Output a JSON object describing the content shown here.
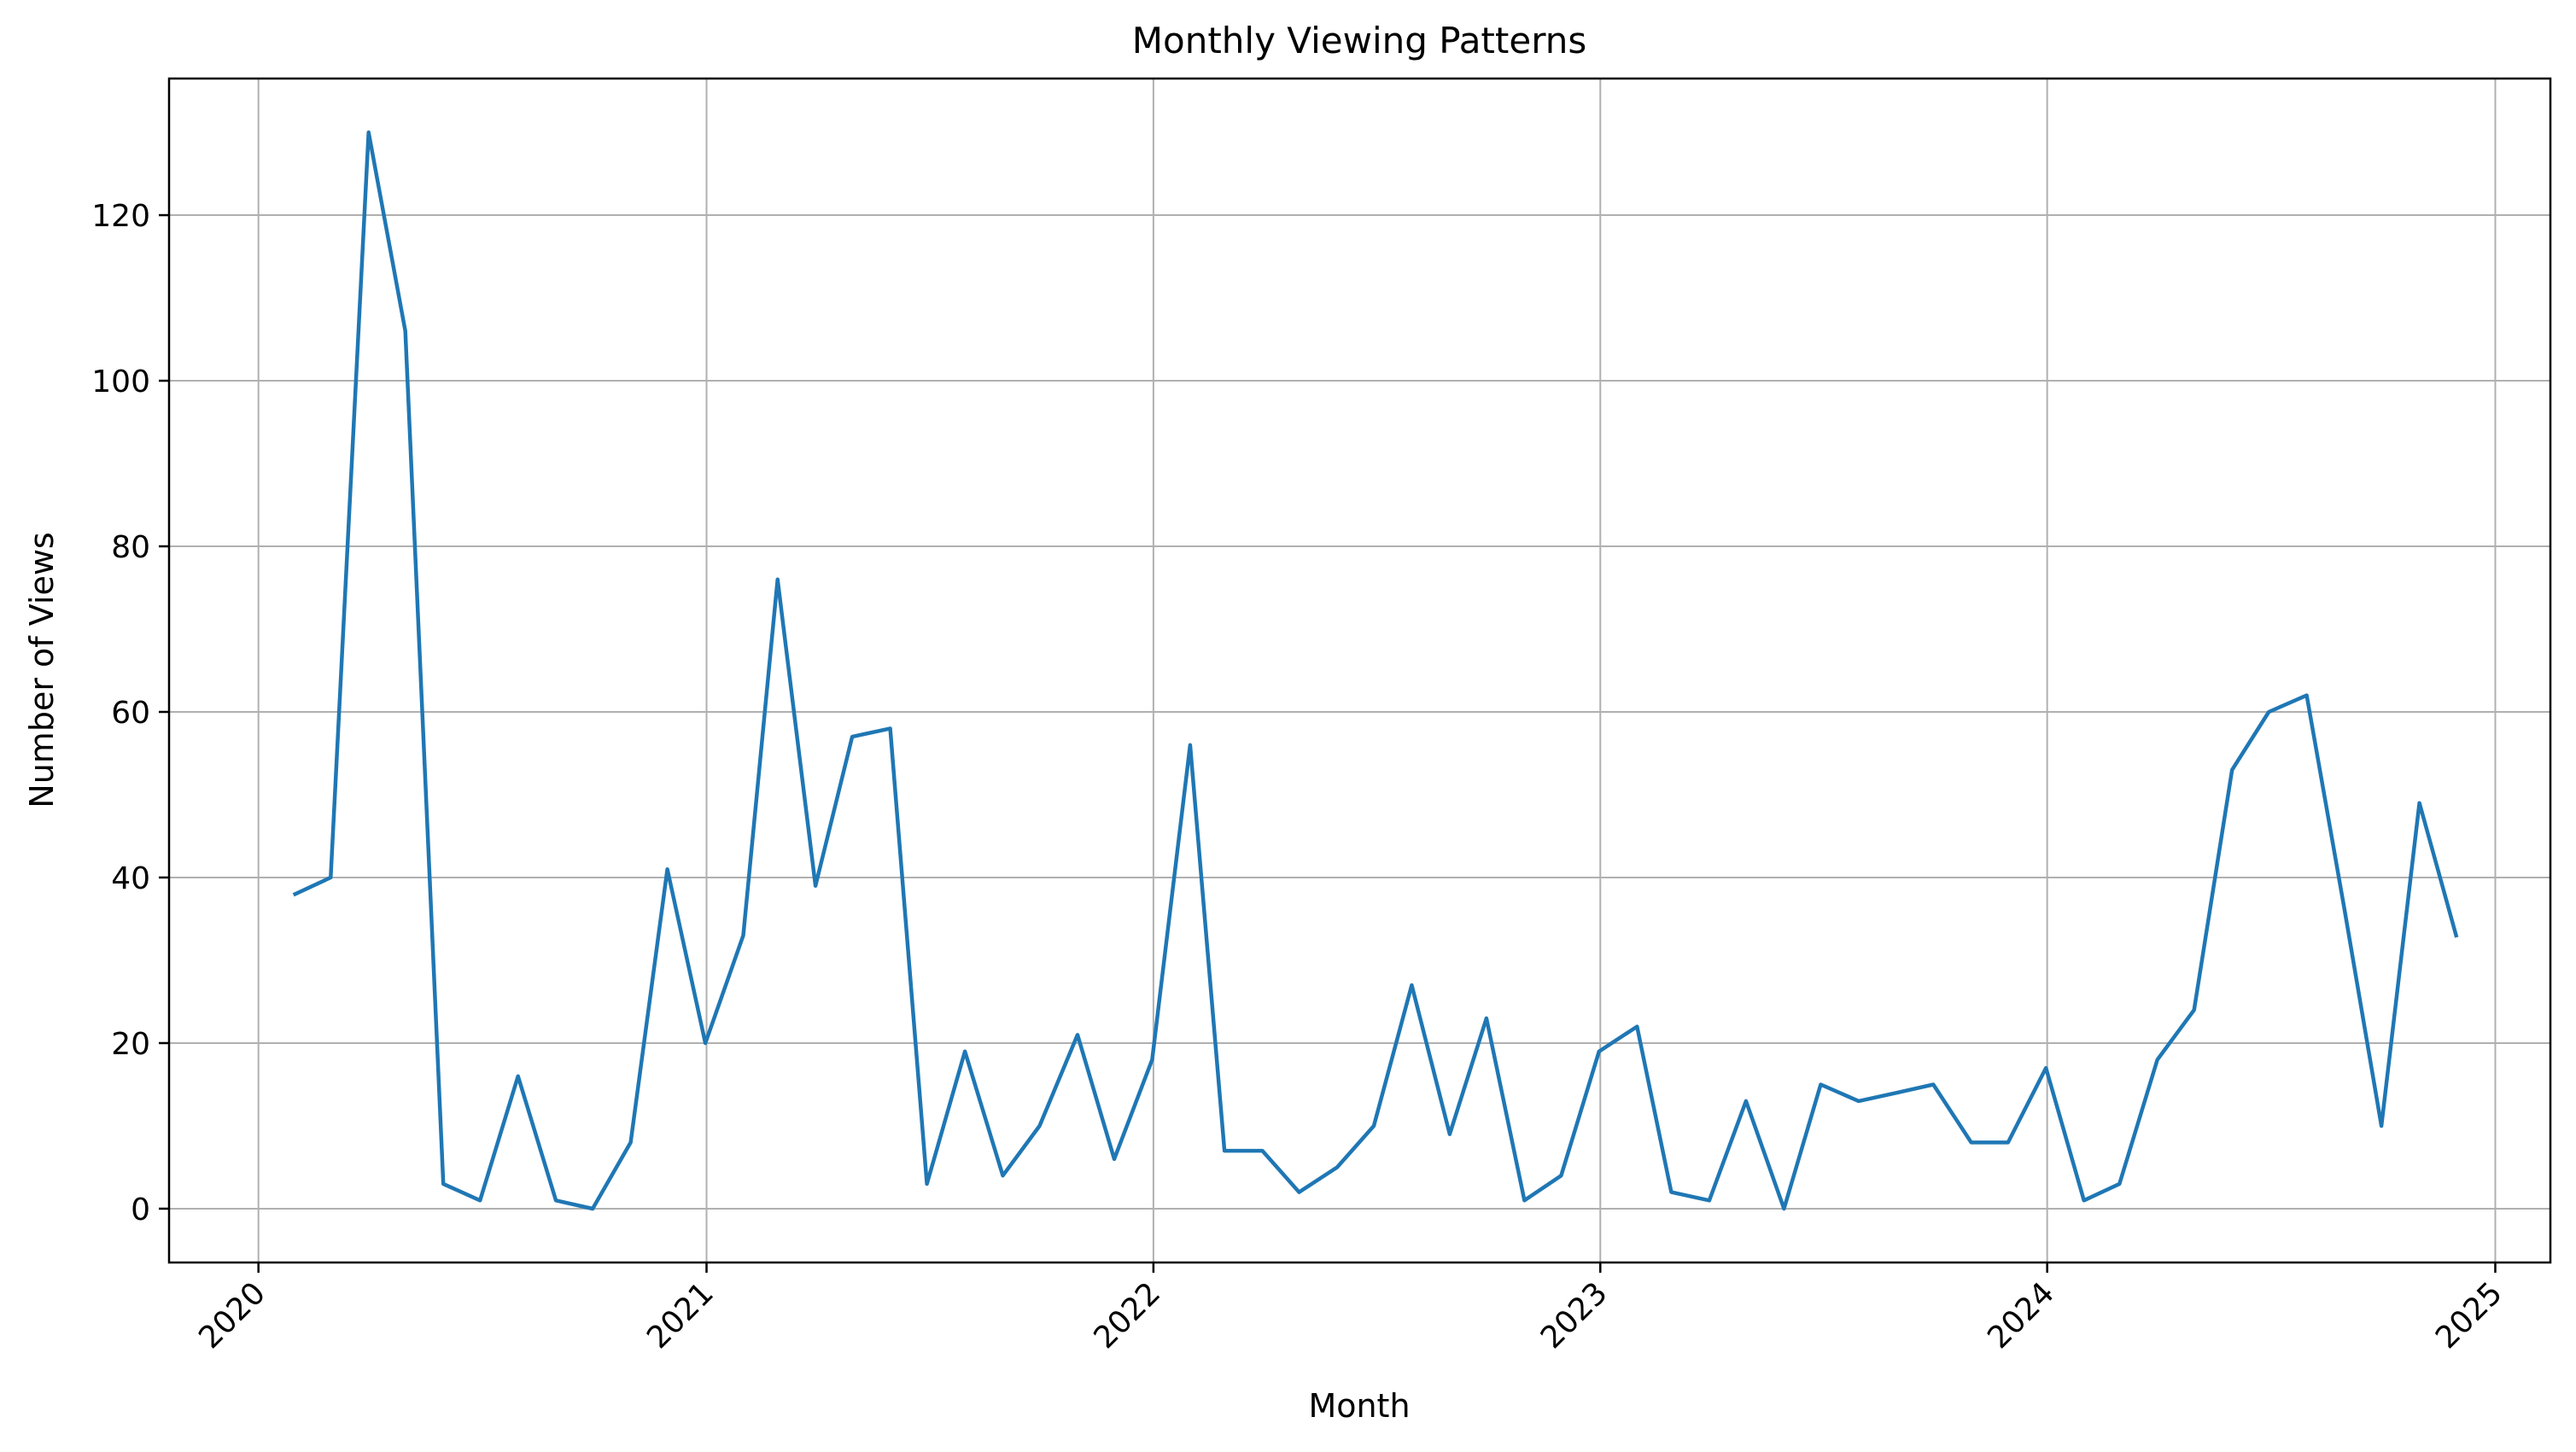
{
  "chart_data": {
    "type": "line",
    "title": "Monthly Viewing Patterns",
    "xlabel": "Month",
    "ylabel": "Number of Views",
    "x_ticks": [
      "2020",
      "2021",
      "2022",
      "2023",
      "2024",
      "2025"
    ],
    "y_ticks": [
      0,
      20,
      40,
      60,
      80,
      100,
      120
    ],
    "xlim": [
      "2019-10-20",
      "2025-02-15"
    ],
    "ylim": [
      -6.5,
      136.5
    ],
    "grid": true,
    "series": [
      {
        "color": "#1f77b4",
        "x": [
          "2020-01-31",
          "2020-02-29",
          "2020-03-31",
          "2020-04-30",
          "2020-05-31",
          "2020-06-30",
          "2020-07-31",
          "2020-08-31",
          "2020-09-30",
          "2020-10-31",
          "2020-11-30",
          "2020-12-31",
          "2021-01-31",
          "2021-02-28",
          "2021-03-31",
          "2021-04-30",
          "2021-05-31",
          "2021-06-30",
          "2021-07-31",
          "2021-08-31",
          "2021-09-30",
          "2021-10-31",
          "2021-11-30",
          "2021-12-31",
          "2022-01-31",
          "2022-02-28",
          "2022-03-31",
          "2022-04-30",
          "2022-05-31",
          "2022-06-30",
          "2022-07-31",
          "2022-08-31",
          "2022-09-30",
          "2022-10-31",
          "2022-11-30",
          "2022-12-31",
          "2023-01-31",
          "2023-02-28",
          "2023-03-31",
          "2023-04-30",
          "2023-05-31",
          "2023-06-30",
          "2023-07-31",
          "2023-08-31",
          "2023-09-30",
          "2023-10-31",
          "2023-11-30",
          "2023-12-31",
          "2024-01-31",
          "2024-02-29",
          "2024-03-31",
          "2024-04-30",
          "2024-05-31",
          "2024-06-30",
          "2024-07-31",
          "2024-08-31",
          "2024-09-30",
          "2024-10-31",
          "2024-11-30"
        ],
        "values": [
          38,
          40,
          130,
          106,
          3,
          1,
          16,
          1,
          0,
          8,
          41,
          20,
          33,
          76,
          39,
          57,
          58,
          3,
          19,
          4,
          10,
          21,
          6,
          18,
          56,
          7,
          7,
          2,
          5,
          10,
          27,
          9,
          23,
          1,
          4,
          19,
          22,
          2,
          1,
          13,
          0,
          15,
          13,
          14,
          15,
          8,
          8,
          17,
          1,
          3,
          18,
          24,
          53,
          60,
          62,
          36,
          10,
          49,
          33
        ]
      }
    ]
  }
}
